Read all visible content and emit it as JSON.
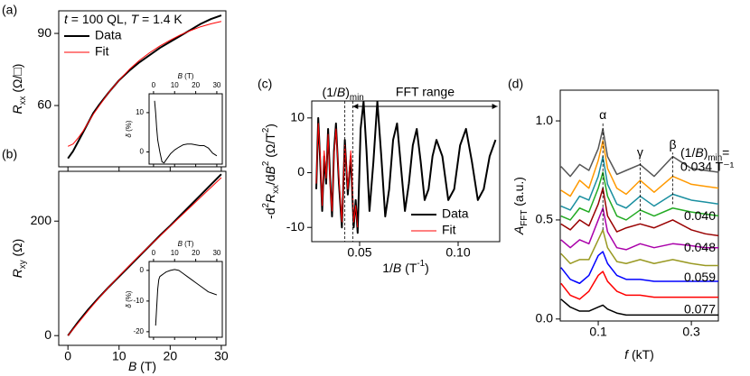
{
  "chart_data": [
    {
      "type": "line",
      "panel_label": "(a)",
      "annotation": [
        {
          "text": "t",
          "style": "i"
        },
        {
          "text": " = 100 QL, "
        },
        {
          "text": "T",
          "style": "i"
        },
        {
          "text": " = 1.4 K"
        }
      ],
      "ylabel": [
        {
          "text": "R",
          "style": "i"
        },
        {
          "text": "xx",
          "style": "sub"
        },
        {
          "text": "  (Ω/□)"
        }
      ],
      "xlim": [
        -1.8,
        30.9
      ],
      "ylim": [
        34.5,
        99.4
      ],
      "xticks": [
        0,
        10,
        20,
        30
      ],
      "xticklabels": false,
      "yticks": [
        60,
        90
      ],
      "legend": "upper left",
      "series": [
        {
          "name": "Data",
          "color": "#000000",
          "width": 2,
          "x": [
            0,
            1,
            2,
            3,
            4,
            5,
            6,
            8,
            10,
            12,
            14,
            16,
            18,
            20,
            22,
            24,
            26,
            28,
            30
          ],
          "values": [
            38,
            41,
            45,
            49,
            53,
            57,
            60,
            65.5,
            70.5,
            74.5,
            78,
            81,
            84,
            86.5,
            89,
            91.5,
            94,
            96,
            97.5
          ]
        },
        {
          "name": "Fit",
          "color": "#ff0000",
          "width": 1,
          "x": [
            0,
            1,
            2,
            3,
            4,
            5,
            6,
            8,
            10,
            12,
            14,
            16,
            18,
            20,
            22,
            24,
            26,
            28,
            30
          ],
          "values": [
            43,
            44,
            46.5,
            49.5,
            53,
            56.5,
            59.5,
            65.5,
            70.5,
            75,
            78.8,
            82,
            84.8,
            87.2,
            89.4,
            91.2,
            92.8,
            94,
            95
          ]
        }
      ],
      "inset": {
        "type": "line",
        "xlabel": [
          {
            "text": "B",
            "style": "i"
          },
          {
            "text": " (T)"
          }
        ],
        "ylabel": [
          {
            "text": "δ",
            "style": "i"
          },
          {
            "text": " (%)"
          }
        ],
        "xlim": [
          -2.1,
          32.6
        ],
        "ylim": [
          -3.1,
          14.8
        ],
        "xticks": [
          0,
          10,
          20,
          30
        ],
        "yticks": [
          0,
          10
        ],
        "series": [
          {
            "color": "#000000",
            "width": 1,
            "x": [
              0.5,
              1,
              1.5,
              2,
              3,
              4,
              5,
              6,
              8,
              10,
              12,
              14,
              16,
              18,
              20,
              22,
              24,
              26,
              28,
              30
            ],
            "values": [
              13,
              10,
              6,
              3,
              0,
              -2.5,
              -2.8,
              -2,
              -0.5,
              0.5,
              1.2,
              1.8,
              2,
              2,
              1.8,
              1.6,
              1.6,
              1,
              -0.3,
              -1
            ]
          }
        ]
      }
    },
    {
      "type": "line",
      "panel_label": "(b)",
      "xlabel": [
        {
          "text": "B",
          "style": "i"
        },
        {
          "text": " (T)"
        }
      ],
      "ylabel": [
        {
          "text": "R",
          "style": "i"
        },
        {
          "text": "xy",
          "style": "sub"
        },
        {
          "text": "  (Ω)"
        }
      ],
      "xlim": [
        -1.8,
        30.9
      ],
      "ylim": [
        -17,
        287
      ],
      "xticks": [
        0,
        10,
        20,
        30
      ],
      "yticks": [
        0,
        200
      ],
      "series": [
        {
          "color": "#000000",
          "width": 2,
          "x": [
            0,
            1,
            2,
            4,
            6,
            8,
            10,
            12,
            14,
            16,
            18,
            20,
            22,
            24,
            26,
            28,
            30
          ],
          "values": [
            0,
            12,
            24,
            46,
            66,
            85,
            103,
            121,
            139,
            157,
            175,
            192,
            210,
            228,
            246,
            264,
            282
          ]
        },
        {
          "color": "#ff0000",
          "width": 1,
          "x": [
            0,
            2,
            4,
            6,
            8,
            10,
            12,
            14,
            16,
            18,
            20,
            22,
            24,
            26,
            28,
            30
          ],
          "values": [
            0,
            22,
            44,
            65,
            85,
            104,
            122,
            140,
            157,
            174,
            191,
            208,
            225,
            242,
            259,
            276
          ]
        }
      ],
      "inset": {
        "type": "line",
        "xlabel": [
          {
            "text": "B",
            "style": "i"
          },
          {
            "text": " (T)"
          }
        ],
        "ylabel": [
          {
            "text": "δ",
            "style": "i"
          },
          {
            "text": " (%)"
          }
        ],
        "xlim": [
          -2.1,
          32.6
        ],
        "ylim": [
          -21.8,
          2.9
        ],
        "xticks": [
          0,
          10,
          20,
          30
        ],
        "yticks": [
          0,
          -10,
          -20
        ],
        "series": [
          {
            "color": "#000000",
            "width": 1,
            "x": [
              1,
              1.5,
              2,
              2.5,
              3,
              4,
              5,
              6,
              8,
              10,
              12,
              14,
              16,
              18,
              20,
              22,
              24,
              26,
              28,
              30
            ],
            "values": [
              -18,
              -12,
              -6,
              -3,
              -2,
              -1.5,
              -1,
              -0.5,
              0,
              0.3,
              0,
              -1,
              -2,
              -3,
              -4,
              -5,
              -6,
              -7,
              -7.5,
              -8
            ]
          }
        ]
      }
    },
    {
      "type": "line",
      "panel_label": "(c)",
      "xlabel": [
        {
          "text": "1/"
        },
        {
          "text": "B",
          "style": "i"
        },
        {
          "text": " (T"
        },
        {
          "text": "-1",
          "style": "sup"
        },
        {
          "text": ")"
        }
      ],
      "ylabel": [
        {
          "text": "-d"
        },
        {
          "text": "2",
          "style": "sup"
        },
        {
          "text": "R",
          "style": "i"
        },
        {
          "text": "xx",
          "style": "sub"
        },
        {
          "text": "/d"
        },
        {
          "text": "B",
          "style": "i"
        },
        {
          "text": "2",
          "style": "sup"
        },
        {
          "text": " (Ω/T"
        },
        {
          "text": "2",
          "style": "sup"
        },
        {
          "text": ")"
        }
      ],
      "xlim": [
        0.0257,
        0.1211
      ],
      "ylim": [
        -12.6,
        13.1
      ],
      "xticks": [
        0.05,
        {
          "value": 0.1,
          "label": "0.10"
        }
      ],
      "yticks": [
        -10,
        0,
        10
      ],
      "legend": "lower right",
      "vlines": [
        0.0425,
        0.0465
      ],
      "vline_label": [
        {
          "text": "(1/"
        },
        {
          "text": "B",
          "style": "i"
        },
        {
          "text": ")"
        },
        {
          "text": "min",
          "style": "sub"
        }
      ],
      "range": {
        "from": 0.0465,
        "to": 0.12,
        "label": "FFT range"
      },
      "series": [
        {
          "name": "Data",
          "color": "#000000",
          "width": 2,
          "x": [
            0.028,
            0.029,
            0.03,
            0.031,
            0.032,
            0.033,
            0.034,
            0.035,
            0.036,
            0.037,
            0.038,
            0.0395,
            0.041,
            0.0425,
            0.044,
            0.0455,
            0.047,
            0.048,
            0.049,
            0.0505,
            0.052,
            0.0535,
            0.055,
            0.057,
            0.059,
            0.061,
            0.063,
            0.065,
            0.067,
            0.069,
            0.071,
            0.073,
            0.075,
            0.077,
            0.079,
            0.081,
            0.083,
            0.085,
            0.087,
            0.089,
            0.092,
            0.095,
            0.098,
            0.101,
            0.104,
            0.107,
            0.11,
            0.113,
            0.116,
            0.119
          ],
          "values": [
            -3,
            10,
            2,
            -7,
            3,
            -2,
            8,
            -1,
            -8,
            4,
            9,
            -2,
            -10,
            6,
            -4,
            3,
            -10,
            -5,
            -11,
            8,
            13,
            4,
            -7,
            2,
            13,
            3,
            -8,
            -3,
            6,
            9,
            1,
            -7,
            -2,
            5,
            8,
            2,
            -5,
            -3,
            3,
            6,
            3,
            -5,
            -3,
            5,
            8,
            2,
            -5,
            -3,
            3,
            6
          ]
        },
        {
          "name": "Fit",
          "color": "#ff0000",
          "width": 1,
          "x": [
            0.028,
            0.029,
            0.03,
            0.031,
            0.032,
            0.033,
            0.034,
            0.035,
            0.036,
            0.037,
            0.038,
            0.0395,
            0.041,
            0.0425,
            0.044,
            0.0455,
            0.047,
            0.048,
            0.049
          ],
          "values": [
            -2,
            9,
            3,
            -6,
            4,
            -1,
            7,
            -2,
            -7,
            3,
            8,
            -1,
            -9,
            5,
            -3,
            4,
            -9,
            -6,
            -10
          ]
        }
      ]
    },
    {
      "type": "line",
      "panel_label": "(d)",
      "xlabel": [
        {
          "text": "f",
          "style": "i"
        },
        {
          "text": " (kT)"
        }
      ],
      "ylabel": [
        {
          "text": "A",
          "style": "i"
        },
        {
          "text": "FFT",
          "style": "sub"
        },
        {
          "text": " (a.u.)"
        }
      ],
      "xlim": [
        0.0184,
        0.358
      ],
      "ylim": [
        -0.01,
        1.155
      ],
      "xticks": [
        0.1,
        0.3
      ],
      "yticks": [
        {
          "value": 0,
          "label": "0.0"
        },
        0.5,
        {
          "value": 1,
          "label": "1.0"
        }
      ],
      "label_header": [
        {
          "text": "(1/"
        },
        {
          "text": "B",
          "style": "i"
        },
        {
          "text": ")"
        },
        {
          "text": "min",
          "style": "sub"
        },
        {
          "text": "="
        }
      ],
      "peaks": [
        {
          "label": "α",
          "x": 0.11,
          "span": [
            0.45,
            0.99
          ]
        },
        {
          "label": "γ",
          "x": 0.19,
          "span": [
            0.5,
            0.8
          ]
        },
        {
          "label": "β",
          "x": 0.26,
          "span": [
            0.58,
            0.84
          ]
        }
      ],
      "x": [
        0.02,
        0.04,
        0.06,
        0.08,
        0.1,
        0.11,
        0.12,
        0.14,
        0.16,
        0.19,
        0.22,
        0.26,
        0.3,
        0.33,
        0.36
      ],
      "series": [
        {
          "name": "0.034 T⁻¹",
          "color": "#555555",
          "width": 1.5,
          "values": [
            0.77,
            0.72,
            0.78,
            0.75,
            0.86,
            0.96,
            0.82,
            0.73,
            0.75,
            0.78,
            0.72,
            0.82,
            0.76,
            0.75,
            0.74
          ]
        },
        {
          "color": "#ff9900",
          "width": 1.5,
          "values": [
            0.65,
            0.62,
            0.7,
            0.66,
            0.8,
            0.9,
            0.76,
            0.66,
            0.63,
            0.7,
            0.64,
            0.72,
            0.68,
            0.67,
            0.66
          ]
        },
        {
          "name": "0.040",
          "color": "#1a8fa0",
          "width": 1.5,
          "values": [
            0.57,
            0.55,
            0.62,
            0.6,
            0.72,
            0.82,
            0.68,
            0.58,
            0.56,
            0.62,
            0.57,
            0.63,
            0.6,
            0.59,
            0.58
          ]
        },
        {
          "color": "#22aa22",
          "width": 1.5,
          "values": [
            0.52,
            0.5,
            0.56,
            0.54,
            0.66,
            0.74,
            0.62,
            0.52,
            0.5,
            0.55,
            0.52,
            0.56,
            0.54,
            0.53,
            0.52
          ]
        },
        {
          "name": "0.048",
          "color": "#990000",
          "width": 1.5,
          "values": [
            0.48,
            0.45,
            0.5,
            0.47,
            0.58,
            0.66,
            0.52,
            0.44,
            0.46,
            0.48,
            0.46,
            0.5,
            0.45,
            0.43,
            0.42
          ]
        },
        {
          "color": "#aa00aa",
          "width": 1.5,
          "values": [
            0.4,
            0.36,
            0.4,
            0.38,
            0.5,
            0.56,
            0.44,
            0.36,
            0.35,
            0.38,
            0.36,
            0.38,
            0.37,
            0.36,
            0.36
          ]
        },
        {
          "name": "0.059",
          "color": "#999922",
          "width": 1.5,
          "values": [
            0.33,
            0.28,
            0.3,
            0.3,
            0.4,
            0.45,
            0.36,
            0.29,
            0.28,
            0.3,
            0.28,
            0.3,
            0.28,
            0.27,
            0.27
          ]
        },
        {
          "color": "#0000ff",
          "width": 1.5,
          "values": [
            0.26,
            0.2,
            0.18,
            0.22,
            0.32,
            0.34,
            0.28,
            0.22,
            0.2,
            0.2,
            0.19,
            0.19,
            0.19,
            0.19,
            0.19
          ]
        },
        {
          "name": "0.077",
          "color": "#ff0000",
          "width": 1.5,
          "values": [
            0.18,
            0.12,
            0.1,
            0.14,
            0.22,
            0.24,
            0.19,
            0.14,
            0.12,
            0.12,
            0.11,
            0.11,
            0.11,
            0.11,
            0.11
          ]
        },
        {
          "color": "#000000",
          "width": 1.5,
          "values": [
            0.1,
            0.06,
            0.04,
            0.04,
            0.06,
            0.07,
            0.05,
            0.03,
            0.02,
            0.02,
            0.02,
            0.02,
            0.02,
            0.02,
            0.02
          ]
        }
      ]
    }
  ]
}
